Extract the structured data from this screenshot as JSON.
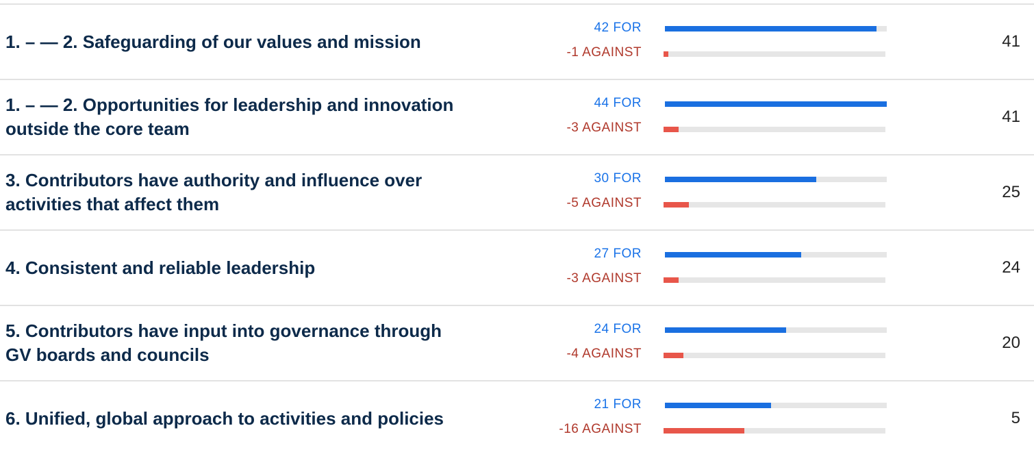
{
  "chart_data": {
    "type": "bar",
    "categories": [
      "1. – — 2. Safeguarding of our values and mission",
      "1. – — 2. Opportunities for leadership and innovation outside the core team",
      "3. Contributors have authority and influence over activities that affect them",
      "4. Consistent and reliable leadership",
      "5. Contributors have input into governance through GV boards and councils",
      "6. Unified, global approach to activities and policies"
    ],
    "series": [
      {
        "color": "#1a6fe0",
        "label_color": "#1a73e8",
        "values": [
          42,
          44,
          30,
          27,
          24,
          21
        ],
        "value_labels": [
          "42 FOR",
          "44 FOR",
          "30 FOR",
          "27 FOR",
          "24 FOR",
          "21 FOR"
        ]
      },
      {
        "color": "#e8564a",
        "label_color": "#b0392c",
        "values": [
          -1,
          -3,
          -5,
          -3,
          -4,
          -16
        ],
        "value_labels": [
          "-1 AGAINST",
          "-3 AGAINST",
          "-5 AGAINST",
          "-3 AGAINST",
          "-4 AGAINST",
          "-16 AGAINST"
        ]
      }
    ],
    "totals": [
      41,
      41,
      25,
      24,
      20,
      5
    ]
  }
}
